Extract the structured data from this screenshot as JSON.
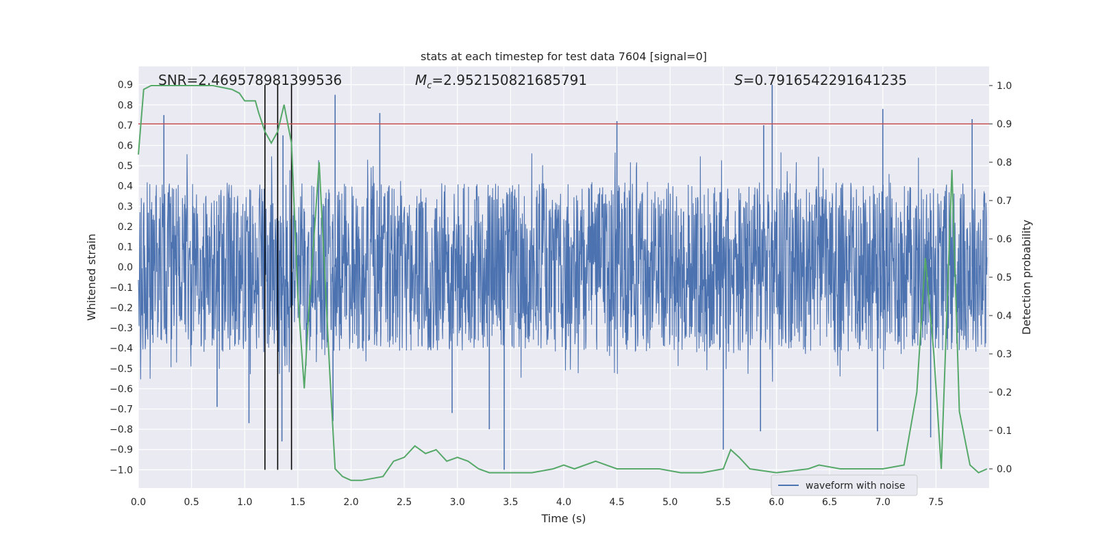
{
  "chart_data": {
    "type": "line",
    "title": "stats at each timestep for test data 7604 [signal=0]",
    "xlabel": "Time (s)",
    "ylabel_left": "Whitened strain",
    "ylabel_right": "Detection probability",
    "xlim": [
      0.0,
      8.0
    ],
    "ylim_left": [
      -1.09,
      0.99
    ],
    "ylim_right": [
      -0.05,
      1.05
    ],
    "x_ticks": [
      "0.0",
      "0.5",
      "1.0",
      "1.5",
      "2.0",
      "2.5",
      "3.0",
      "3.5",
      "4.0",
      "4.5",
      "5.0",
      "5.5",
      "6.0",
      "6.5",
      "7.0",
      "7.5"
    ],
    "y_ticks_left": [
      "−1.0",
      "−0.9",
      "−0.8",
      "−0.7",
      "−0.6",
      "−0.5",
      "−0.4",
      "−0.3",
      "−0.2",
      "−0.1",
      "0.0",
      "0.1",
      "0.2",
      "0.3",
      "0.4",
      "0.5",
      "0.6",
      "0.7",
      "0.8",
      "0.9"
    ],
    "y_ticks_right": [
      "0.0",
      "0.1",
      "0.2",
      "0.3",
      "0.4",
      "0.5",
      "0.6",
      "0.7",
      "0.8",
      "0.9",
      "1.0"
    ],
    "grid": true,
    "legend_position": "lower-right",
    "annotations": {
      "snr": "SNR=2.469578981399536",
      "mc_symbol": "M",
      "mc_sub": "c",
      "mc_value": "=2.952150821685791",
      "s_symbol": "S",
      "s_value": "=0.7916542291641235"
    },
    "threshold_line": {
      "axis": "right",
      "value": 0.9,
      "color": "#c44e52"
    },
    "vertical_lines": [
      1.19,
      1.31,
      1.44
    ],
    "waveform": {
      "name": "waveform with noise",
      "color": "#4c72b0",
      "typical_envelope": 0.42,
      "spikes": [
        {
          "x": 0.24,
          "y": 0.75
        },
        {
          "x": 1.85,
          "y": 0.85
        },
        {
          "x": 2.27,
          "y": 0.76
        },
        {
          "x": 4.5,
          "y": 0.72
        },
        {
          "x": 5.96,
          "y": 0.9
        },
        {
          "x": 7.0,
          "y": 0.78
        },
        {
          "x": 7.84,
          "y": 0.73
        },
        {
          "x": 1.36,
          "y": 0.65
        },
        {
          "x": 5.88,
          "y": 0.7
        },
        {
          "x": 3.44,
          "y": -1.0
        },
        {
          "x": 1.04,
          "y": -0.77
        },
        {
          "x": 1.35,
          "y": -0.86
        },
        {
          "x": 5.5,
          "y": -0.9
        },
        {
          "x": 5.85,
          "y": -0.81
        },
        {
          "x": 6.95,
          "y": -0.81
        },
        {
          "x": 7.45,
          "y": -0.84
        },
        {
          "x": 3.3,
          "y": -0.8
        },
        {
          "x": 0.74,
          "y": -0.69
        },
        {
          "x": 1.83,
          "y": -0.76
        },
        {
          "x": 2.95,
          "y": -0.72
        }
      ]
    },
    "probability": {
      "color": "#55a868",
      "x": [
        0.0,
        0.05,
        0.12,
        0.3,
        0.5,
        0.7,
        0.88,
        0.95,
        1.0,
        1.1,
        1.13,
        1.19,
        1.25,
        1.31,
        1.37,
        1.44,
        1.5,
        1.56,
        1.6,
        1.7,
        1.8,
        1.85,
        1.92,
        2.0,
        2.1,
        2.3,
        2.4,
        2.5,
        2.6,
        2.7,
        2.8,
        2.9,
        3.0,
        3.1,
        3.2,
        3.3,
        3.5,
        3.7,
        3.9,
        4.0,
        4.1,
        4.3,
        4.5,
        4.7,
        4.9,
        5.1,
        5.3,
        5.5,
        5.57,
        5.65,
        5.75,
        6.0,
        6.3,
        6.4,
        6.6,
        6.8,
        7.0,
        7.2,
        7.32,
        7.4,
        7.48,
        7.55,
        7.65,
        7.72,
        7.82,
        7.9,
        7.98
      ],
      "y": [
        0.82,
        0.99,
        1.0,
        1.0,
        1.0,
        1.0,
        0.99,
        0.98,
        0.96,
        0.96,
        0.93,
        0.88,
        0.85,
        0.88,
        0.95,
        0.85,
        0.45,
        0.21,
        0.4,
        0.8,
        0.25,
        0.0,
        -0.02,
        -0.03,
        -0.03,
        -0.02,
        0.02,
        0.03,
        0.06,
        0.04,
        0.05,
        0.02,
        0.03,
        0.02,
        0.0,
        -0.01,
        -0.01,
        -0.01,
        0.0,
        0.01,
        0.0,
        0.02,
        0.0,
        0.0,
        0.0,
        -0.01,
        -0.01,
        0.0,
        0.05,
        0.03,
        0.0,
        -0.01,
        0.0,
        0.01,
        0.0,
        0.0,
        0.0,
        0.01,
        0.2,
        0.55,
        0.3,
        0.0,
        0.78,
        0.15,
        0.01,
        -0.01,
        0.0
      ]
    }
  }
}
